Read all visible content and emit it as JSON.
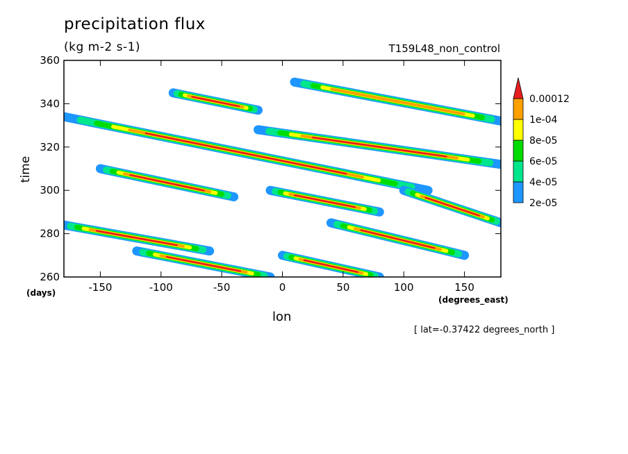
{
  "chart_data": {
    "type": "heatmap",
    "title": "precipitation flux",
    "units": "(kg m-2 s-1)",
    "run_label": "T159L48_non_control",
    "xlabel": "lon",
    "xunit": "(degrees_east)",
    "ylabel": "time",
    "yunit": "(days)",
    "annotation": "[ lat=-0.37422 degrees_north ]",
    "xlim": [
      -180,
      180
    ],
    "ylim": [
      260,
      360
    ],
    "x_ticks": [
      -150,
      -100,
      -50,
      0,
      50,
      100,
      150
    ],
    "y_ticks": [
      260,
      280,
      300,
      320,
      340,
      360
    ],
    "x_tick_labels": [
      "-150",
      "-100",
      "-50",
      "0",
      "50",
      "100",
      "150"
    ],
    "y_tick_labels": [
      "260",
      "280",
      "300",
      "320",
      "340",
      "360"
    ],
    "levels": [
      2e-05,
      4e-05,
      6e-05,
      8e-05,
      0.0001,
      0.00012
    ],
    "level_labels": [
      "2e-05",
      "4e-05",
      "6e-05",
      "8e-05",
      "1e-04",
      "0.00012"
    ],
    "level_colors": [
      "#1e96ff",
      "#00e68c",
      "#00dc00",
      "#ffff00",
      "#ffa000",
      "#e61e1e"
    ],
    "grid": false,
    "legend_position": "right",
    "features": [
      {
        "lon_start": -180,
        "time_start": 284,
        "lon_end": -60,
        "time_end": 272,
        "peak": 0.00013
      },
      {
        "lon_start": -150,
        "time_start": 310,
        "lon_end": -40,
        "time_end": 297,
        "peak": 0.00013
      },
      {
        "lon_start": -180,
        "time_start": 334,
        "lon_end": 120,
        "time_end": 300,
        "peak": 0.00013
      },
      {
        "lon_start": -10,
        "time_start": 300,
        "lon_end": 80,
        "time_end": 290,
        "peak": 0.00013
      },
      {
        "lon_start": 0,
        "time_start": 270,
        "lon_end": 80,
        "time_end": 260,
        "peak": 0.00013
      },
      {
        "lon_start": -120,
        "time_start": 272,
        "lon_end": -10,
        "time_end": 260,
        "peak": 0.00013
      },
      {
        "lon_start": -90,
        "time_start": 345,
        "lon_end": -20,
        "time_end": 337,
        "peak": 0.00013
      },
      {
        "lon_start": 10,
        "time_start": 350,
        "lon_end": 180,
        "time_end": 332,
        "peak": 0.00011
      },
      {
        "lon_start": -20,
        "time_start": 328,
        "lon_end": 180,
        "time_end": 312,
        "peak": 0.00013
      },
      {
        "lon_start": 100,
        "time_start": 300,
        "lon_end": 180,
        "time_end": 285,
        "peak": 0.00013
      },
      {
        "lon_start": 40,
        "time_start": 285,
        "lon_end": 150,
        "time_end": 270,
        "peak": 0.00013
      }
    ]
  }
}
